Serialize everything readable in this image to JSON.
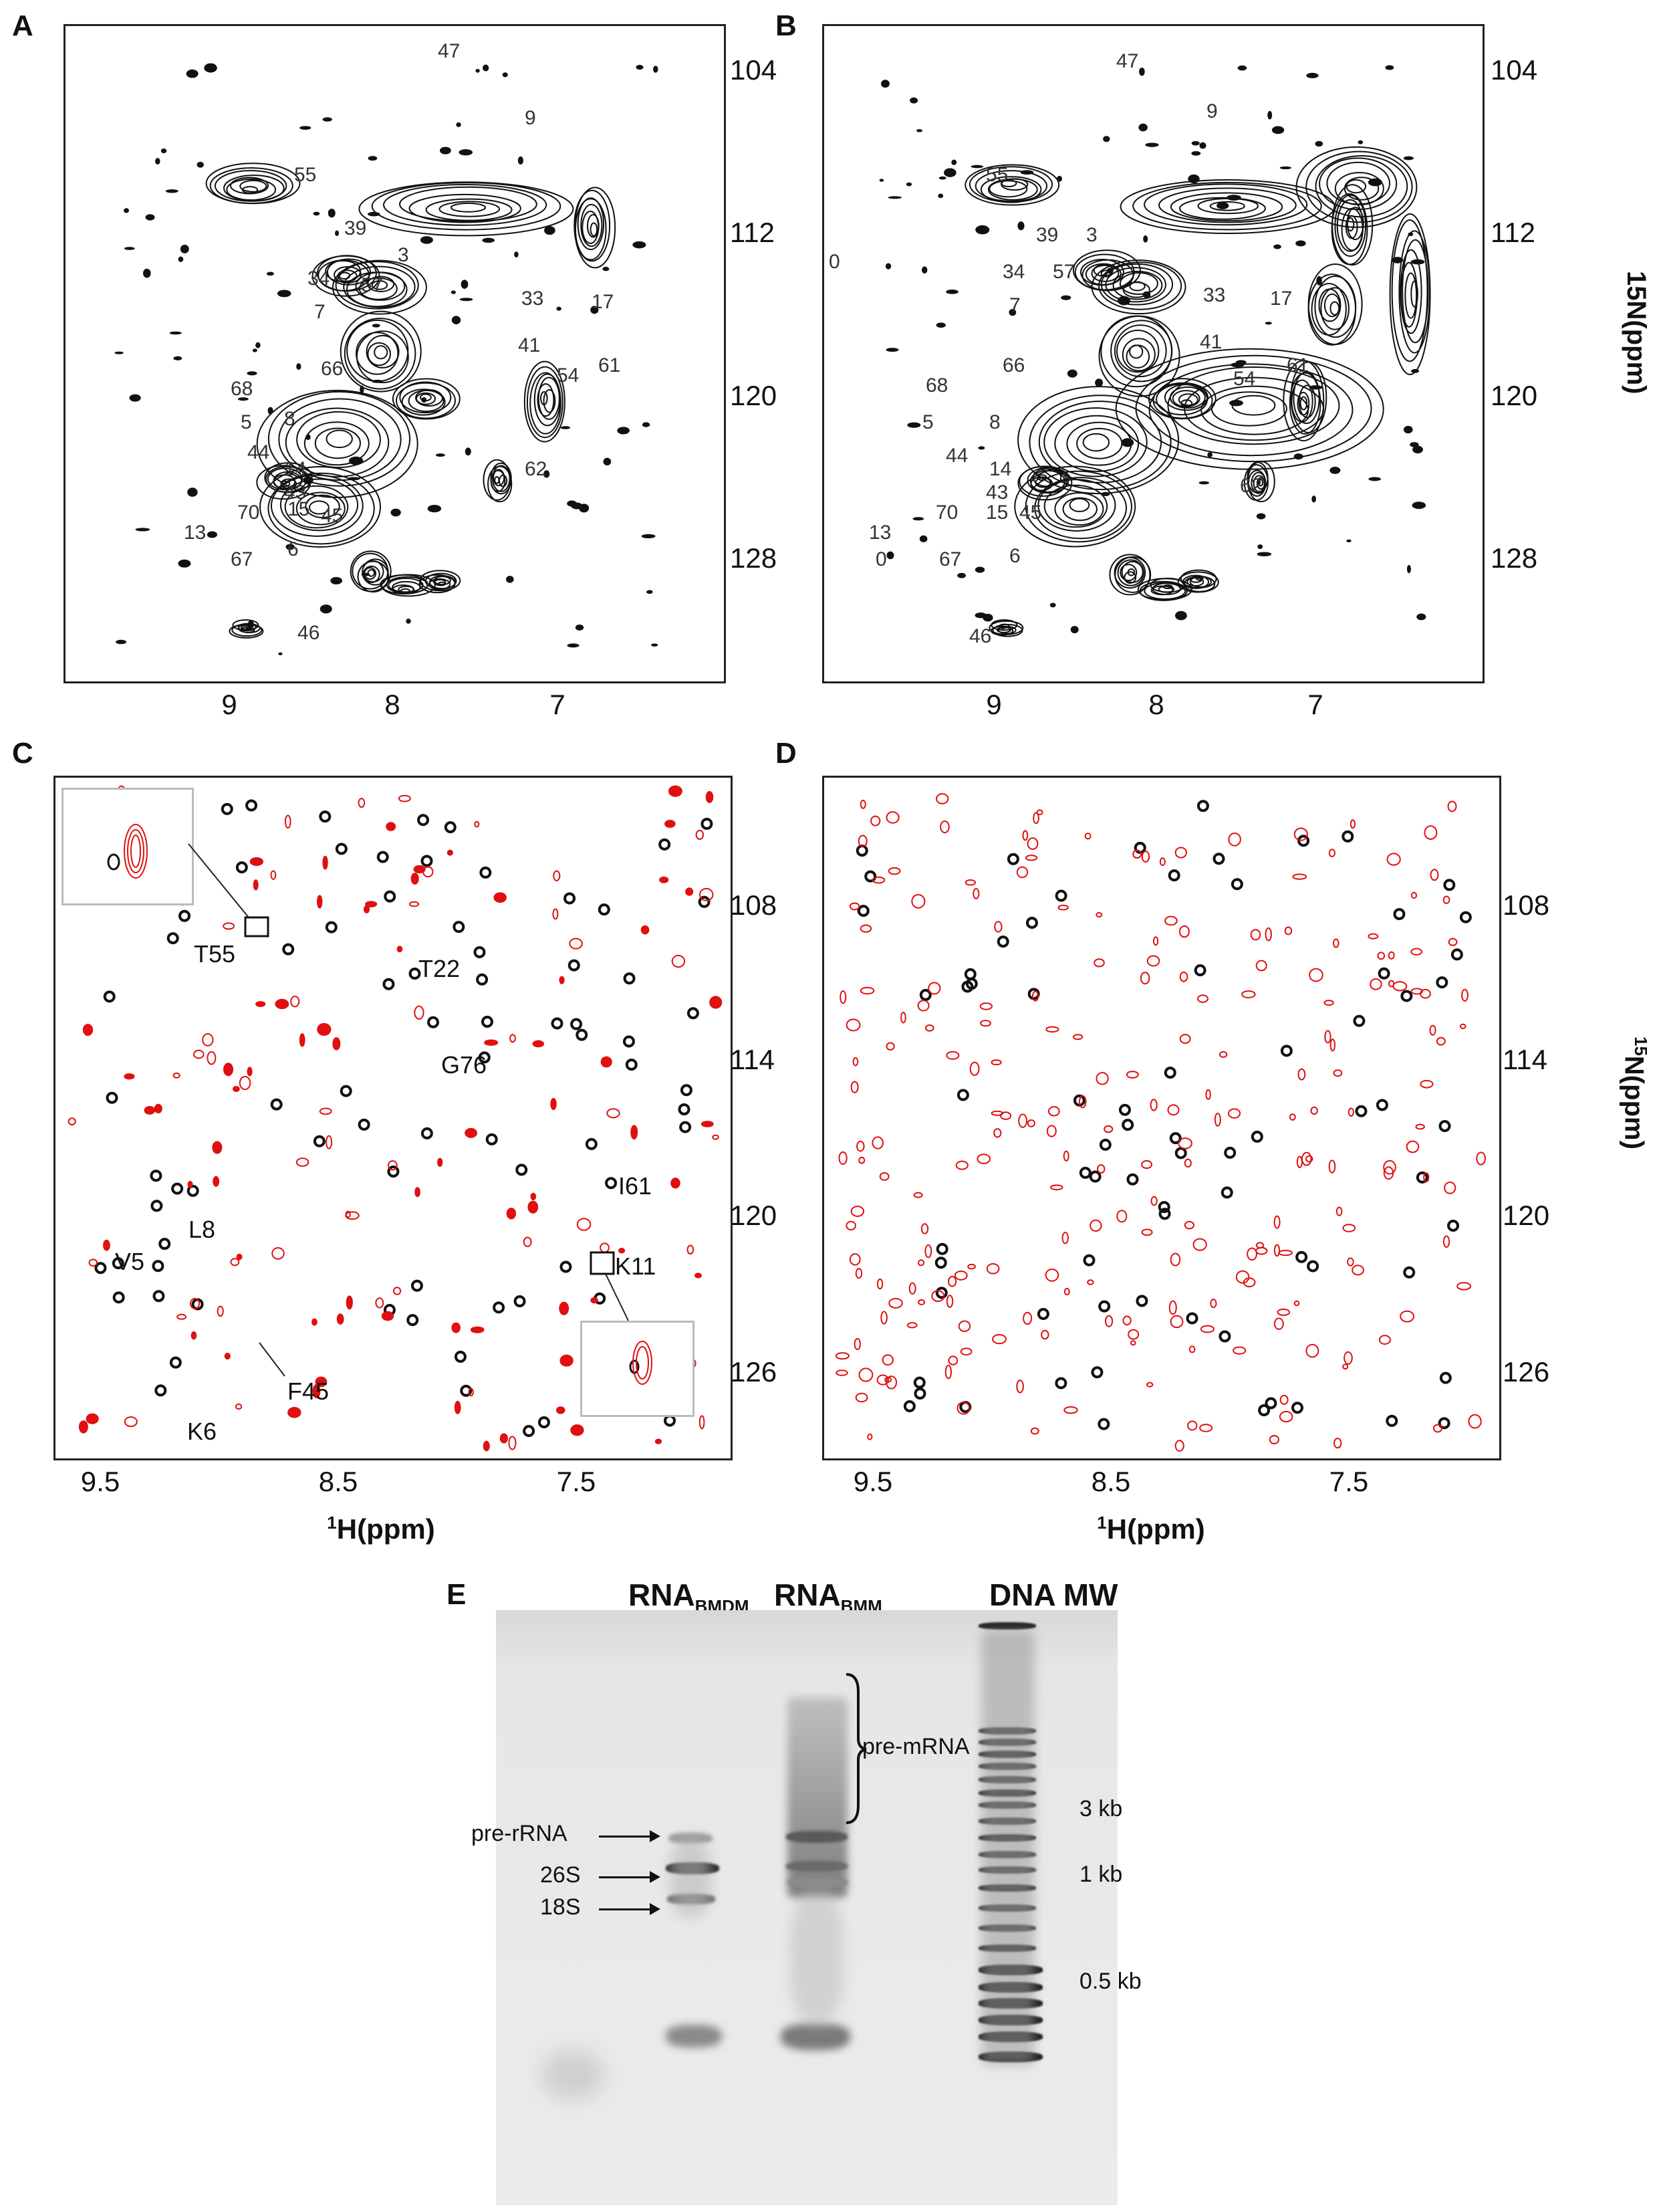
{
  "panels": {
    "A": {
      "letter": "A",
      "x_ticks": [
        "9",
        "8",
        "7"
      ],
      "y_ticks": [
        "104",
        "112",
        "120",
        "128"
      ],
      "residues": [
        "47",
        "9",
        "55",
        "39",
        "3",
        "34",
        "57",
        "7",
        "33",
        "17",
        "66",
        "41",
        "54",
        "61",
        "68",
        "5",
        "8",
        "44",
        "14",
        "62",
        "43",
        "70",
        "15",
        "45",
        "13",
        "67",
        "6",
        "46"
      ]
    },
    "B": {
      "letter": "B",
      "x_ticks": [
        "9",
        "8",
        "7"
      ],
      "y_ticks": [
        "104",
        "112",
        "120",
        "128"
      ],
      "y_title": "15N(ppm)",
      "residues": [
        "47",
        "9",
        "55",
        "39",
        "3",
        "0",
        "34",
        "57",
        "7",
        "33",
        "17",
        "66",
        "41",
        "61",
        "68",
        "54",
        "5",
        "8",
        "44",
        "14",
        "62",
        "43",
        "70",
        "15",
        "45",
        "13",
        "0",
        "67",
        "6",
        "46"
      ]
    },
    "C": {
      "letter": "C",
      "x_ticks": [
        "9.5",
        "8.5",
        "7.5"
      ],
      "y_ticks": [
        "108",
        "114",
        "120",
        "126"
      ],
      "x_title": "H(ppm)",
      "x_title_sup": "1",
      "labels": [
        "T55",
        "T22",
        "G76",
        "I61",
        "L8",
        "V5",
        "K11",
        "F45",
        "K6"
      ]
    },
    "D": {
      "letter": "D",
      "x_ticks": [
        "9.5",
        "8.5",
        "7.5"
      ],
      "y_ticks": [
        "108",
        "114",
        "120",
        "126"
      ],
      "y_title": "N(ppm)",
      "y_title_sup": "15",
      "x_title": "H(ppm)",
      "x_title_sup": "1"
    },
    "E": {
      "letter": "E",
      "lanes": [
        {
          "main": "RNA",
          "sub": "BMDM"
        },
        {
          "main": "RNA",
          "sub": "BMM"
        },
        {
          "main": "DNA MW",
          "sub": ""
        }
      ],
      "left_labels": [
        "pre-rRNA",
        "26S",
        "18S"
      ],
      "bracket_label": "pre-mRNA",
      "size_markers": [
        "3 kb",
        "1 kb",
        "0.5 kb"
      ]
    }
  },
  "colors": {
    "reference_spectrum": "#111111",
    "overlay_spectrum": "#e01010",
    "inset_border": "#bbbbbb"
  }
}
